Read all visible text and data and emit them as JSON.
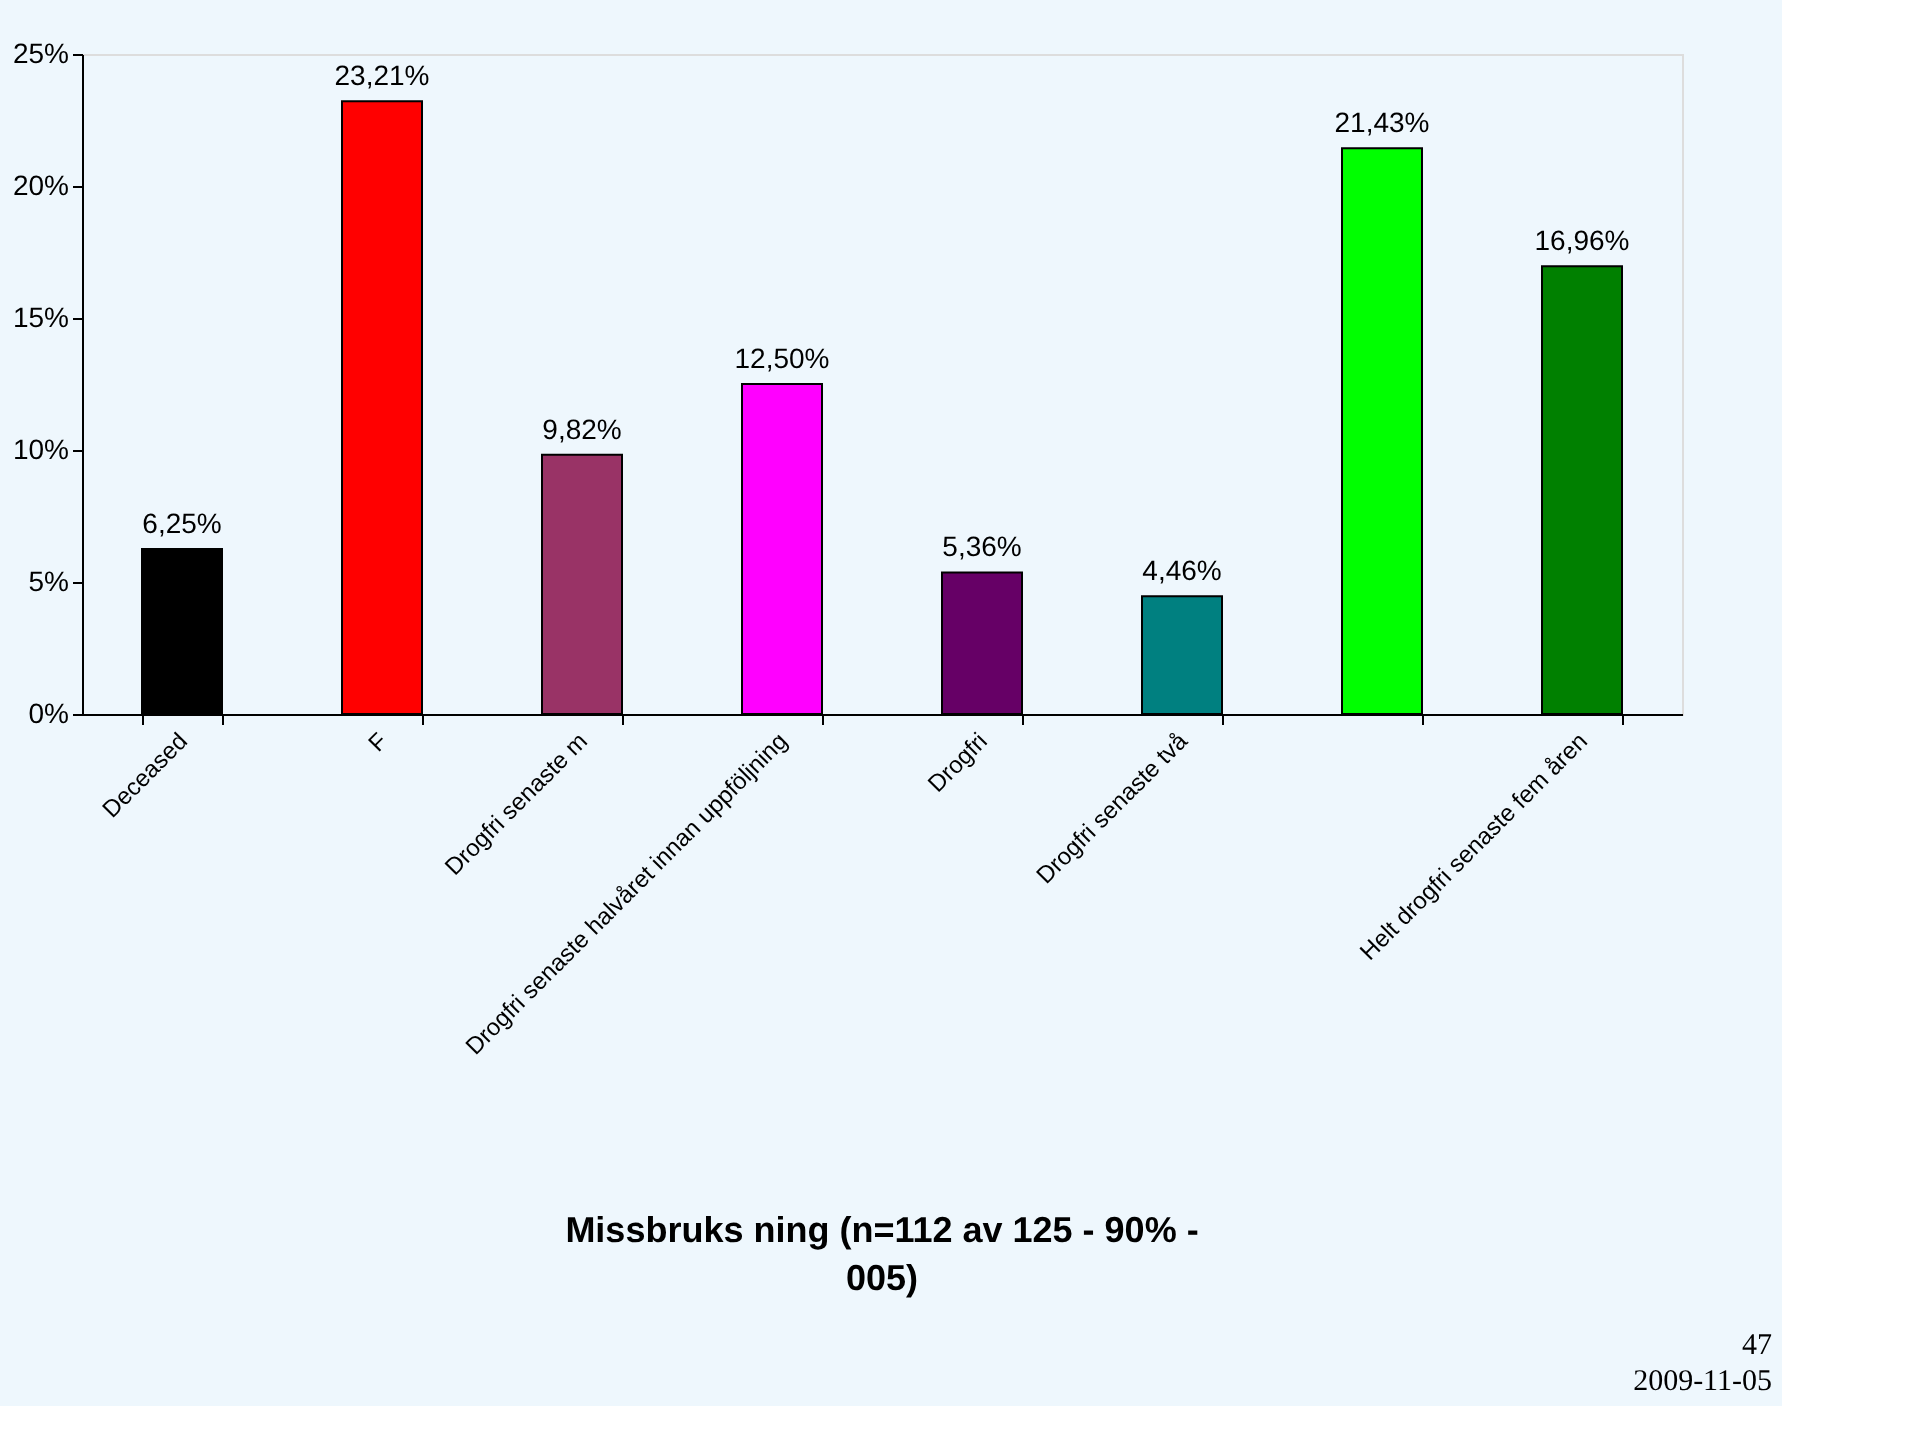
{
  "chart_data": {
    "type": "bar",
    "title": "Missbruks ning (n=112 av 125 - 90% -\n005)",
    "categories": [
      "Deceased",
      "F",
      "Drogfri senaste m",
      "Drogfri senaste halvåret innan uppföljning",
      "Drogfri",
      "Drogfri senaste två",
      null,
      "Helt drogfri senaste fem åren"
    ],
    "values": [
      6.25,
      23.21,
      9.82,
      12.5,
      5.36,
      4.46,
      21.43,
      16.96
    ],
    "colors": [
      "#000000",
      "#ff0000",
      "#993366",
      "#ff00ff",
      "#660066",
      "#008080",
      "#00ff00",
      "#008000"
    ],
    "value_labels": [
      "6,25%",
      "23,21%",
      "9,82%",
      "12,50%",
      "5,36%",
      "4,46%",
      "21,43%",
      "16,96%"
    ],
    "ylim": [
      0,
      25
    ],
    "yticks": [
      {
        "value": 0,
        "label": "0%"
      },
      {
        "value": 5,
        "label": "5%"
      },
      {
        "value": 10,
        "label": "10%"
      },
      {
        "value": 15,
        "label": "15%"
      },
      {
        "value": 20,
        "label": "20%"
      },
      {
        "value": 25,
        "label": "25%"
      }
    ],
    "grid": false,
    "annotations": [
      "47",
      "2009-11-05"
    ]
  }
}
